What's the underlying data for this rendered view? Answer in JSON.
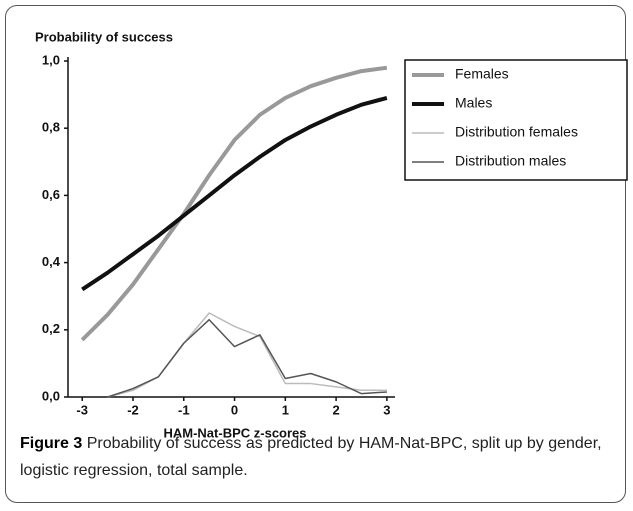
{
  "chart_data": {
    "type": "line",
    "title": "Probability of success",
    "x_label": "HAM-Nat-BPC  z-scores",
    "x": [
      -3,
      -2.5,
      -2,
      -1.5,
      -1,
      -0.5,
      0,
      0.5,
      1,
      1.5,
      2,
      2.5,
      3
    ],
    "series": [
      {
        "name": "Females",
        "color": "#999999",
        "width": 4,
        "values": [
          0.17,
          0.245,
          0.335,
          0.44,
          0.545,
          0.66,
          0.765,
          0.84,
          0.89,
          0.925,
          0.95,
          0.97,
          0.98
        ]
      },
      {
        "name": "Males",
        "color": "#111111",
        "width": 4,
        "values": [
          0.32,
          0.37,
          0.425,
          0.48,
          0.54,
          0.6,
          0.66,
          0.715,
          0.765,
          0.805,
          0.84,
          0.87,
          0.89
        ]
      },
      {
        "name": "Distribution females",
        "color": "#bbbbbb",
        "width": 1.5,
        "values": [
          null,
          0,
          0.02,
          0.06,
          0.16,
          0.25,
          0.21,
          0.18,
          0.04,
          0.04,
          0.03,
          0.02,
          0.02
        ]
      },
      {
        "name": "Distribution males",
        "color": "#555555",
        "width": 1.5,
        "values": [
          null,
          0,
          0.025,
          0.06,
          0.16,
          0.23,
          0.15,
          0.185,
          0.055,
          0.07,
          0.045,
          0.01,
          0.015
        ]
      }
    ],
    "xlim": [
      -3.28,
      3.16
    ],
    "xticks": [
      -3,
      -2,
      -1,
      0,
      1,
      2,
      3
    ],
    "ylim": [
      0,
      1
    ],
    "yticks": [
      {
        "value": 0,
        "label": "0,0"
      },
      {
        "value": 0.2,
        "label": "0,2"
      },
      {
        "value": 0.4,
        "label": "0,4"
      },
      {
        "value": 0.6,
        "label": "0,6"
      },
      {
        "value": 0.8,
        "label": "0,8"
      },
      {
        "value": 1,
        "label": "1,0"
      }
    ],
    "legend": "upper right",
    "caption_label": "Figure 3",
    "caption": "Probability of success as predicted by HAM-Nat-BPC, split up by gender, logistic regression, total sample."
  }
}
